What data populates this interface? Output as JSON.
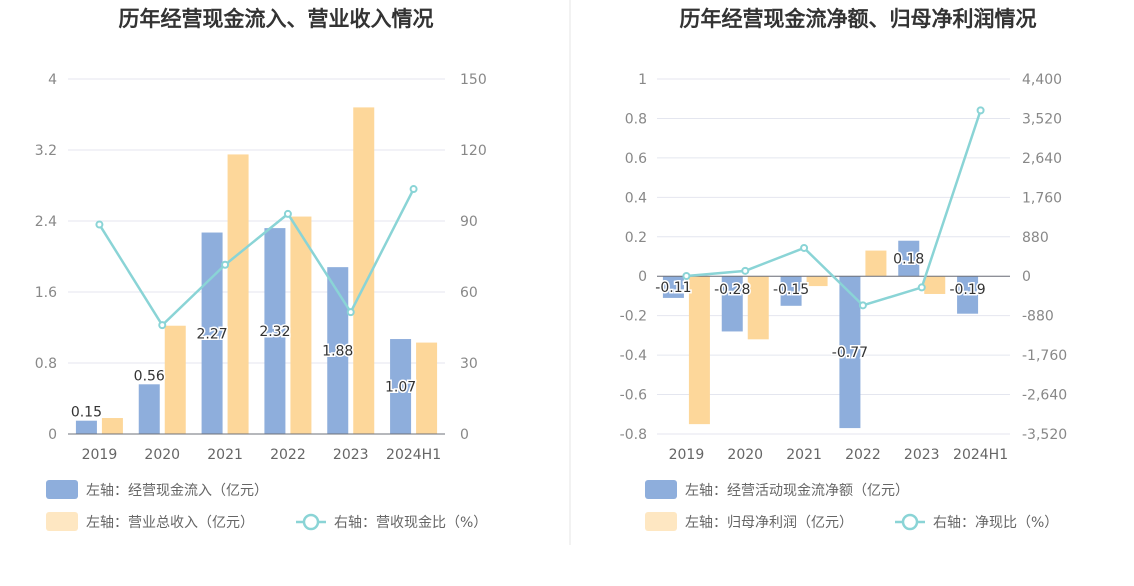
{
  "colors": {
    "bar_primary": "#8eaedc",
    "bar_secondary": "#fdd79a",
    "line": "#8ad4d6",
    "grid": "#e4e6ef",
    "divider": "#e6e6e6"
  },
  "chart_data": [
    {
      "type": "bar",
      "title": "历年经营现金流入、营业收入情况",
      "categories": [
        "2019",
        "2020",
        "2021",
        "2022",
        "2023",
        "2024H1"
      ],
      "left_axis": {
        "ylim": [
          0,
          4
        ],
        "ticks": [
          "0",
          "0.8",
          "1.6",
          "2.4",
          "3.2",
          "4"
        ]
      },
      "right_axis": {
        "ylim": [
          0,
          150
        ],
        "ticks": [
          "0",
          "30",
          "60",
          "90",
          "120",
          "150"
        ]
      },
      "series": [
        {
          "name": "左轴：经营现金流入（亿元）",
          "type": "bar",
          "axis": "left",
          "values": [
            0.15,
            0.56,
            2.27,
            2.32,
            1.88,
            1.07
          ],
          "labels": [
            "0.15",
            "0.56",
            "2.27",
            "2.32",
            "1.88",
            "1.07"
          ]
        },
        {
          "name": "左轴：营业总收入（亿元）",
          "type": "bar",
          "axis": "left",
          "values": [
            0.18,
            1.22,
            3.15,
            2.45,
            3.68,
            1.03
          ]
        },
        {
          "name": "右轴：营收现金比（%）",
          "type": "line",
          "axis": "right",
          "values": [
            88.5,
            46,
            71.5,
            93,
            51.5,
            103.5
          ]
        }
      ],
      "legend_position": "bottom",
      "grid": true
    },
    {
      "type": "bar",
      "title": "历年经营现金流净额、归母净利润情况",
      "categories": [
        "2019",
        "2020",
        "2021",
        "2022",
        "2023",
        "2024H1"
      ],
      "left_axis": {
        "ylim": [
          -0.8,
          1
        ],
        "ticks": [
          "-0.8",
          "-0.6",
          "-0.4",
          "-0.2",
          "0",
          "0.2",
          "0.4",
          "0.6",
          "0.8",
          "1"
        ]
      },
      "right_axis": {
        "ylim": [
          -3520,
          4400
        ],
        "ticks": [
          "-3,520",
          "-2,640",
          "-1,760",
          "-880",
          "0",
          "880",
          "1,760",
          "2,640",
          "3,520",
          "4,400"
        ]
      },
      "series": [
        {
          "name": "左轴：经营活动现金流净额（亿元）",
          "type": "bar",
          "axis": "left",
          "values": [
            -0.11,
            -0.28,
            -0.15,
            -0.77,
            0.18,
            -0.19
          ],
          "labels": [
            "-0.11",
            "-0.28",
            "-0.15",
            "-0.77",
            "0.18",
            "-0.19"
          ]
        },
        {
          "name": "左轴：归母净利润（亿元）",
          "type": "bar",
          "axis": "left",
          "values": [
            -0.75,
            -0.32,
            -0.05,
            0.13,
            -0.09,
            0
          ]
        },
        {
          "name": "右轴：净现比（%）",
          "type": "line",
          "axis": "right",
          "values": [
            5,
            120,
            630,
            -650,
            -250,
            3700
          ]
        }
      ],
      "legend_position": "bottom",
      "grid": true
    }
  ]
}
